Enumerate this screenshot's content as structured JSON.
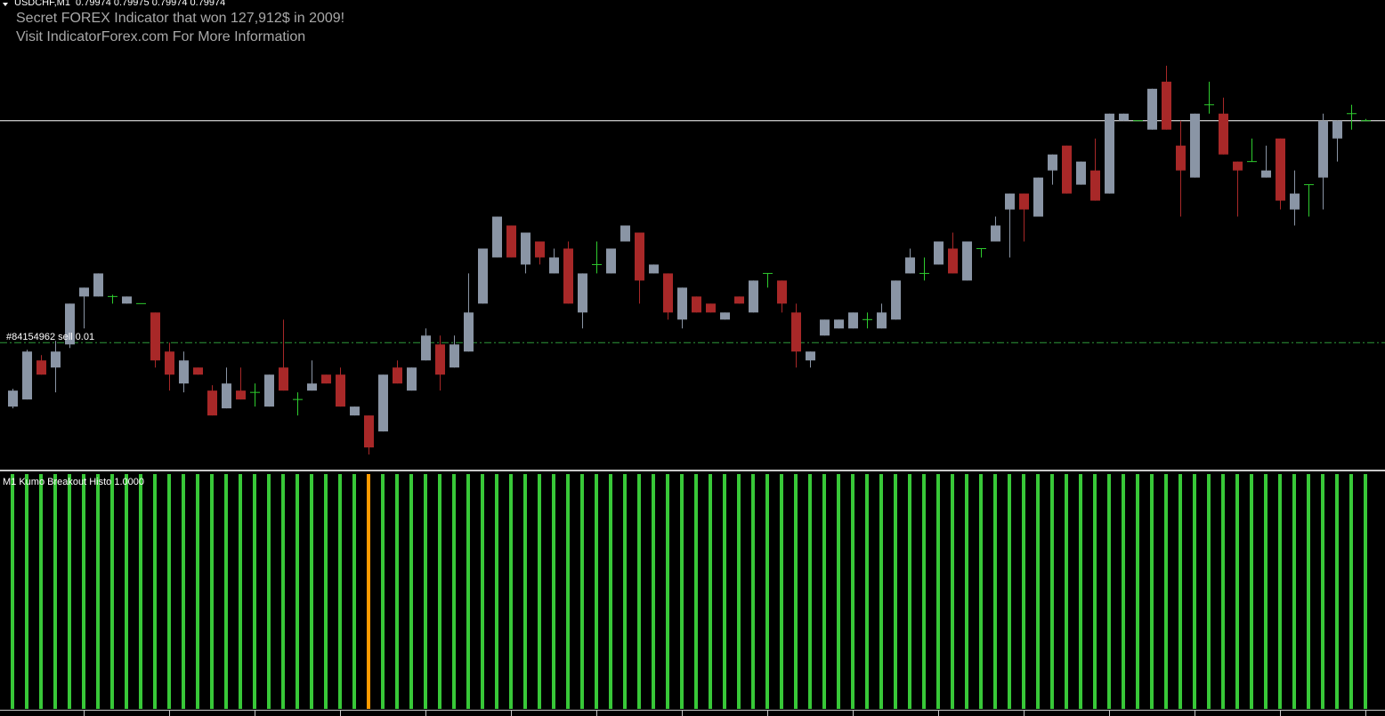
{
  "chart_data": [
    {
      "type": "candlestick",
      "title": "USDCHF,M1  0.79974 0.79975 0.79974 0.79974",
      "annotations": [
        "Secret FOREX Indicator that won 127,912$ in 2009!",
        "Visit IndicatorForex.com For More Information"
      ],
      "ylim": [
        0.79778,
        0.80042
      ],
      "up_color": "#8a95a5",
      "down_color": "#a82828",
      "doji_color": "#2ecc2e",
      "bid_line": {
        "price": 0.79974,
        "color": "#ffffff"
      },
      "order_line": {
        "label": "#84154962 sell 0.01",
        "price": 0.79849,
        "color": "#2e9a3a"
      },
      "open": [
        0.79813,
        0.79817,
        0.79839,
        0.79835,
        0.79848,
        0.79875,
        0.79875,
        0.79875,
        0.79871,
        0.79871,
        0.79866,
        0.79844,
        0.79826,
        0.79835,
        0.79822,
        0.79812,
        0.79822,
        0.79821,
        0.79813,
        0.79835,
        0.79817,
        0.79822,
        0.79831,
        0.79831,
        0.79808,
        0.79808,
        0.79799,
        0.79835,
        0.79822,
        0.79839,
        0.79848,
        0.79835,
        0.79844,
        0.79871,
        0.79897,
        0.79915,
        0.79893,
        0.79906,
        0.79888,
        0.79902,
        0.79866,
        0.79893,
        0.79888,
        0.79906,
        0.79911,
        0.79888,
        0.79888,
        0.79862,
        0.79875,
        0.79871,
        0.79862,
        0.79875,
        0.79866,
        0.79888,
        0.79884,
        0.79866,
        0.79839,
        0.79853,
        0.79857,
        0.79857,
        0.79862,
        0.79857,
        0.79862,
        0.79888,
        0.79888,
        0.79893,
        0.79902,
        0.79884,
        0.79902,
        0.79906,
        0.79924,
        0.79933,
        0.7992,
        0.79946,
        0.7996,
        0.79938,
        0.79946,
        0.79933,
        0.79974,
        0.79974,
        0.79969,
        0.79996,
        0.7996,
        0.79942,
        0.79983,
        0.79978,
        0.79951,
        0.79951,
        0.79942,
        0.79964,
        0.79924,
        0.79938,
        0.79942,
        0.79964,
        0.79978,
        0.79974
      ],
      "high": [
        0.79823,
        0.79845,
        0.79842,
        0.7985,
        0.79871,
        0.7988,
        0.79888,
        0.79876,
        0.79875,
        0.79871,
        0.79866,
        0.79849,
        0.79844,
        0.79835,
        0.79825,
        0.79835,
        0.79835,
        0.79826,
        0.79831,
        0.79862,
        0.79821,
        0.79839,
        0.79831,
        0.79835,
        0.79813,
        0.79808,
        0.79831,
        0.79839,
        0.79835,
        0.79857,
        0.79853,
        0.79853,
        0.79888,
        0.79902,
        0.7992,
        0.79915,
        0.79911,
        0.79906,
        0.79902,
        0.79906,
        0.79888,
        0.79906,
        0.79902,
        0.79915,
        0.79911,
        0.79893,
        0.79888,
        0.7988,
        0.79875,
        0.79871,
        0.79866,
        0.79875,
        0.79884,
        0.79888,
        0.79884,
        0.79871,
        0.79844,
        0.79862,
        0.79862,
        0.79866,
        0.79866,
        0.79871,
        0.79884,
        0.79902,
        0.79897,
        0.79906,
        0.79911,
        0.79906,
        0.79902,
        0.7992,
        0.79933,
        0.79933,
        0.79942,
        0.79955,
        0.7996,
        0.79951,
        0.79964,
        0.79978,
        0.79978,
        0.79974,
        0.79992,
        0.80005,
        0.79974,
        0.79978,
        0.79996,
        0.79987,
        0.79951,
        0.79964,
        0.7996,
        0.79964,
        0.79946,
        0.79938,
        0.79978,
        0.79974,
        0.79983,
        0.79975
      ],
      "low": [
        0.79812,
        0.79817,
        0.79831,
        0.79821,
        0.79846,
        0.79857,
        0.79875,
        0.79871,
        0.79871,
        0.79871,
        0.79835,
        0.79822,
        0.79821,
        0.79831,
        0.79808,
        0.79812,
        0.79817,
        0.79813,
        0.79813,
        0.79822,
        0.79808,
        0.79822,
        0.79826,
        0.79813,
        0.79808,
        0.79786,
        0.79799,
        0.79826,
        0.79822,
        0.79839,
        0.79822,
        0.79835,
        0.79844,
        0.79871,
        0.79897,
        0.79897,
        0.79888,
        0.79893,
        0.79888,
        0.79871,
        0.79857,
        0.79888,
        0.79888,
        0.79906,
        0.79871,
        0.79888,
        0.79862,
        0.79857,
        0.79866,
        0.79866,
        0.79862,
        0.79871,
        0.79866,
        0.7988,
        0.79866,
        0.79835,
        0.79835,
        0.79853,
        0.79857,
        0.79857,
        0.79857,
        0.79857,
        0.79862,
        0.79888,
        0.79884,
        0.79893,
        0.79888,
        0.79884,
        0.79897,
        0.79906,
        0.79897,
        0.79906,
        0.7992,
        0.79938,
        0.79933,
        0.79938,
        0.79929,
        0.79933,
        0.79974,
        0.79974,
        0.79969,
        0.79969,
        0.7992,
        0.79942,
        0.79978,
        0.79955,
        0.7992,
        0.79951,
        0.79942,
        0.79924,
        0.79915,
        0.7992,
        0.79924,
        0.79951,
        0.79969,
        0.79974
      ],
      "close": [
        0.79822,
        0.79844,
        0.79831,
        0.79844,
        0.79871,
        0.7988,
        0.79888,
        0.79875,
        0.79875,
        0.79871,
        0.79839,
        0.79831,
        0.79839,
        0.79831,
        0.79808,
        0.79826,
        0.79817,
        0.79821,
        0.79831,
        0.79822,
        0.79817,
        0.79826,
        0.79826,
        0.79813,
        0.79813,
        0.7979,
        0.79831,
        0.79826,
        0.79835,
        0.79853,
        0.79831,
        0.79848,
        0.79866,
        0.79902,
        0.7992,
        0.79897,
        0.79911,
        0.79897,
        0.79897,
        0.79871,
        0.79888,
        0.79893,
        0.79902,
        0.79915,
        0.79884,
        0.79893,
        0.79866,
        0.7988,
        0.79866,
        0.79866,
        0.79866,
        0.79871,
        0.79884,
        0.79888,
        0.79871,
        0.79844,
        0.79844,
        0.79862,
        0.79862,
        0.79866,
        0.79862,
        0.79866,
        0.79884,
        0.79897,
        0.79888,
        0.79906,
        0.79888,
        0.79906,
        0.79902,
        0.79915,
        0.79933,
        0.79924,
        0.79942,
        0.79955,
        0.79933,
        0.79951,
        0.79929,
        0.79978,
        0.79978,
        0.79974,
        0.79992,
        0.79969,
        0.79946,
        0.79978,
        0.79983,
        0.79955,
        0.79946,
        0.79951,
        0.79946,
        0.79929,
        0.79933,
        0.79938,
        0.79974,
        0.79974,
        0.79978,
        0.79974
      ]
    },
    {
      "type": "bar",
      "title": "M1 Kumo Breakout Histo 1.0000",
      "ylim": [
        0,
        1
      ],
      "values": [
        1,
        1,
        1,
        1,
        1,
        1,
        1,
        1,
        1,
        1,
        1,
        1,
        1,
        1,
        1,
        1,
        1,
        1,
        1,
        1,
        1,
        1,
        1,
        1,
        1,
        1,
        1,
        1,
        1,
        1,
        1,
        1,
        1,
        1,
        1,
        1,
        1,
        1,
        1,
        1,
        1,
        1,
        1,
        1,
        1,
        1,
        1,
        1,
        1,
        1,
        1,
        1,
        1,
        1,
        1,
        1,
        1,
        1,
        1,
        1,
        1,
        1,
        1,
        1,
        1,
        1,
        1,
        1,
        1,
        1,
        1,
        1,
        1,
        1,
        1,
        1,
        1,
        1,
        1,
        1,
        1,
        1,
        1,
        1,
        1,
        1,
        1,
        1,
        1,
        1,
        1,
        1,
        1,
        1,
        1,
        1
      ],
      "colors": [
        "#38c838",
        "#38c838",
        "#38c838",
        "#38c838",
        "#38c838",
        "#38c838",
        "#38c838",
        "#38c838",
        "#38c838",
        "#38c838",
        "#38c838",
        "#38c838",
        "#38c838",
        "#38c838",
        "#38c838",
        "#38c838",
        "#38c838",
        "#38c838",
        "#38c838",
        "#38c838",
        "#38c838",
        "#38c838",
        "#38c838",
        "#38c838",
        "#38c838",
        "#ff9a00",
        "#38c838",
        "#38c838",
        "#38c838",
        "#38c838",
        "#38c838",
        "#38c838",
        "#38c838",
        "#38c838",
        "#38c838",
        "#38c838",
        "#38c838",
        "#38c838",
        "#38c838",
        "#38c838",
        "#38c838",
        "#38c838",
        "#38c838",
        "#38c838",
        "#38c838",
        "#38c838",
        "#38c838",
        "#38c838",
        "#38c838",
        "#38c838",
        "#38c838",
        "#38c838",
        "#38c838",
        "#38c838",
        "#38c838",
        "#38c838",
        "#38c838",
        "#38c838",
        "#38c838",
        "#38c838",
        "#38c838",
        "#38c838",
        "#38c838",
        "#38c838",
        "#38c838",
        "#38c838",
        "#38c838",
        "#38c838",
        "#38c838",
        "#38c838",
        "#38c838",
        "#38c838",
        "#38c838",
        "#38c838",
        "#38c838",
        "#38c838",
        "#38c838",
        "#38c838",
        "#38c838",
        "#38c838",
        "#38c838",
        "#38c838",
        "#38c838",
        "#38c838",
        "#38c838",
        "#38c838",
        "#38c838",
        "#38c838",
        "#38c838",
        "#38c838",
        "#38c838",
        "#38c838",
        "#38c838",
        "#38c838",
        "#38c838",
        "#38c838"
      ]
    }
  ]
}
